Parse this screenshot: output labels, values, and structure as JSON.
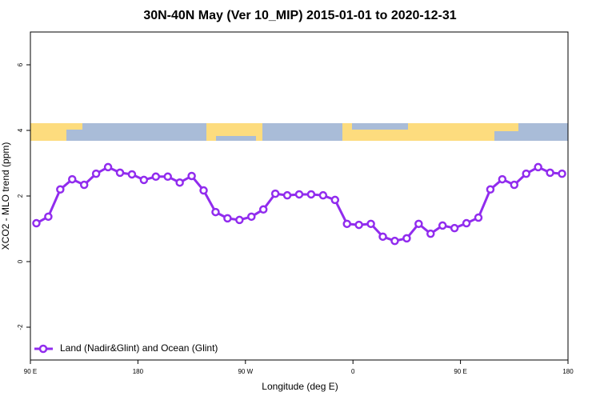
{
  "chart_data": {
    "type": "line",
    "title": "30N-40N May (Ver 10_MIP)   2015-01-01 to 2020-12-31",
    "xlabel": "Longitude (deg E)",
    "ylabel": "XCO2 - MLO trend (ppm)",
    "x": [
      95,
      105,
      115,
      125,
      135,
      145,
      155,
      165,
      175,
      185,
      195,
      205,
      215,
      225,
      235,
      245,
      255,
      265,
      275,
      285,
      295,
      305,
      315,
      325,
      335,
      345,
      355,
      365,
      375,
      385,
      395,
      405,
      415,
      425,
      435,
      445,
      455,
      465,
      475,
      485,
      495,
      505,
      515,
      525,
      535
    ],
    "series": [
      {
        "name": "Land (Nadir&Glint) and Ocean (Glint)",
        "color": "#912cee",
        "values": [
          1.17,
          1.37,
          2.2,
          2.51,
          2.34,
          2.68,
          2.88,
          2.71,
          2.66,
          2.49,
          2.59,
          2.59,
          2.41,
          2.61,
          2.17,
          1.51,
          1.32,
          1.27,
          1.37,
          1.59,
          2.07,
          2.02,
          2.05,
          2.05,
          2.02,
          1.88,
          1.15,
          1.12,
          1.15,
          0.76,
          0.63,
          0.71,
          1.15,
          0.85,
          1.1,
          1.02,
          1.17,
          1.34,
          2.2,
          2.51,
          2.34,
          2.68,
          2.88,
          2.71,
          2.68
        ]
      }
    ],
    "xlim": [
      90,
      540
    ],
    "xticks": [
      {
        "value": 90,
        "label": "90 E"
      },
      180,
      {
        "value": 270,
        "label": "90 W"
      },
      {
        "value": 360,
        "label": "0"
      },
      {
        "value": 450,
        "label": "90 E"
      },
      {
        "value": 540,
        "label": "180"
      }
    ],
    "ylim": [
      -3,
      7
    ],
    "yticks": [
      -2,
      0,
      2,
      4,
      6
    ],
    "legend": "bottom-left"
  }
}
